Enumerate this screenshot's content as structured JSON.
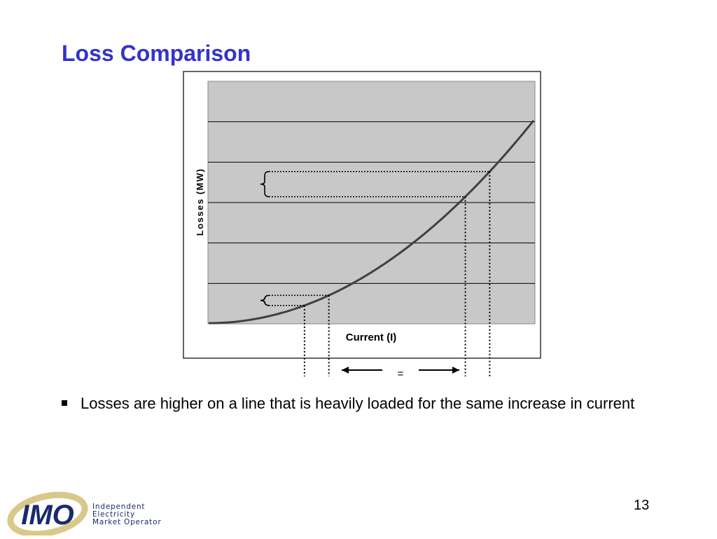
{
  "slide": {
    "title": "Loss Comparison",
    "bullet": "Losses are higher on a line that is heavily loaded for the same increase in current",
    "page_number": "13"
  },
  "logo": {
    "mark": "IMO",
    "lines": [
      "Independent",
      "Electricity",
      "Market Operator"
    ],
    "colors": {
      "ring": "#d8c98a",
      "text": "#1a2a6c"
    },
    "icon": "imo-logo"
  },
  "chart_data": {
    "type": "line",
    "title": "",
    "xlabel": "Current (I)",
    "ylabel": "Losses (MW)",
    "curve": "quadratic (losses proportional to current squared)",
    "grid": true,
    "gridlines_horizontal": 6,
    "plot_background": "#c8c8c8",
    "series": [
      {
        "x": [
          0.0,
          0.1,
          0.2,
          0.3,
          0.4,
          0.5,
          0.6,
          0.7,
          0.8,
          0.9,
          1.0
        ],
        "y": [
          0.0,
          0.01,
          0.04,
          0.09,
          0.16,
          0.25,
          0.36,
          0.49,
          0.64,
          0.81,
          1.0
        ]
      }
    ],
    "annotations": {
      "lightly_loaded_interval": "lower current step with small loss increase",
      "heavily_loaded_interval": "higher current step with large loss increase",
      "equal_sign": "="
    }
  }
}
